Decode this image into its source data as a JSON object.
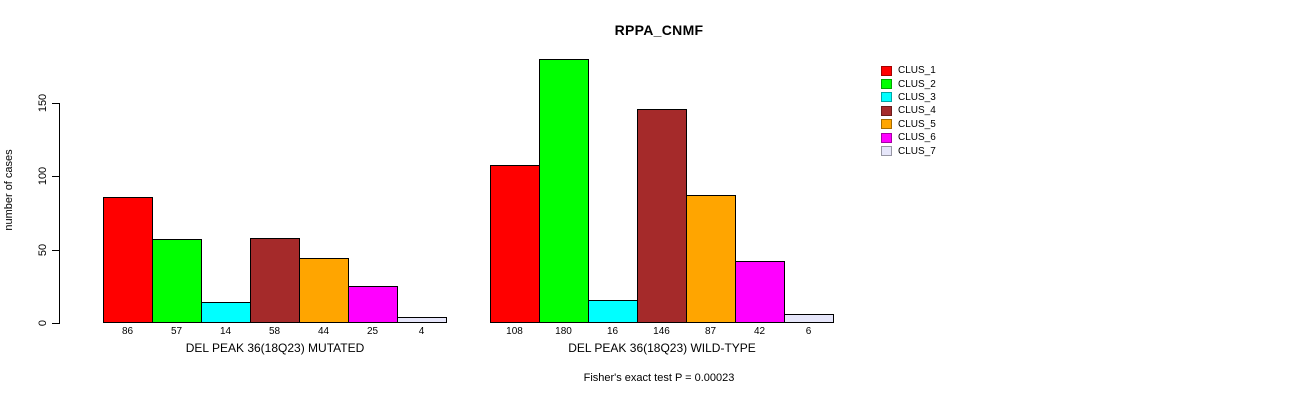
{
  "chart_data": {
    "type": "bar",
    "title": "RPPA_CNMF",
    "ylabel": "number of cases",
    "xlabel": "",
    "ylim": [
      0,
      180
    ],
    "yticks": [
      0,
      50,
      100,
      150
    ],
    "grid": false,
    "legend_position": "right",
    "footnote": "Fisher's exact test P = 0.00023",
    "legend": [
      {
        "label": "CLUS_1",
        "color": "#FF0000"
      },
      {
        "label": "CLUS_2",
        "color": "#00FF00"
      },
      {
        "label": "CLUS_3",
        "color": "#00FFFF"
      },
      {
        "label": "CLUS_4",
        "color": "#A52A2A"
      },
      {
        "label": "CLUS_5",
        "color": "#FFA500"
      },
      {
        "label": "CLUS_6",
        "color": "#FF00FF"
      },
      {
        "label": "CLUS_7",
        "color": "#E6E6FA"
      }
    ],
    "groups": [
      {
        "label": "DEL PEAK 36(18Q23) MUTATED",
        "values": [
          86,
          57,
          14,
          58,
          44,
          25,
          4
        ]
      },
      {
        "label": "DEL PEAK 36(18Q23) WILD-TYPE",
        "values": [
          108,
          180,
          16,
          146,
          87,
          42,
          6
        ]
      }
    ]
  }
}
